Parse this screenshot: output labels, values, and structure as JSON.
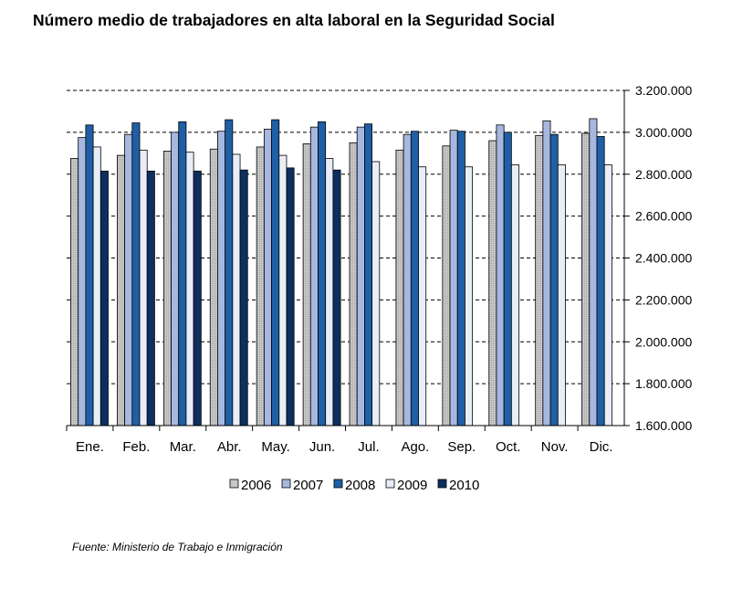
{
  "chart_data": {
    "type": "bar",
    "title": "Número medio de trabajadores en alta laboral en la Seguridad Social",
    "xlabel": "",
    "ylabel": "",
    "ylim": [
      1600000,
      3200000
    ],
    "yticks": [
      1600000,
      1800000,
      2000000,
      2200000,
      2400000,
      2600000,
      2800000,
      3000000,
      3200000
    ],
    "ytick_labels": [
      "1.600.000",
      "1.800.000",
      "2.000.000",
      "2.200.000",
      "2.400.000",
      "2.600.000",
      "2.800.000",
      "3.000.000",
      "3.200.000"
    ],
    "y_axis_side": "right",
    "grid": "dashed horizontal",
    "legend_position": "bottom",
    "categories": [
      "Ene.",
      "Feb.",
      "Mar.",
      "Abr.",
      "May.",
      "Jun.",
      "Jul.",
      "Ago.",
      "Sep.",
      "Oct.",
      "Nov.",
      "Dic."
    ],
    "series": [
      {
        "name": "2006",
        "color": "#c8c8c8",
        "values": [
          2875000,
          2890000,
          2910000,
          2920000,
          2930000,
          2945000,
          2950000,
          2915000,
          2935000,
          2960000,
          2985000,
          2995000
        ]
      },
      {
        "name": "2007",
        "color": "#a6b8df",
        "values": [
          2975000,
          2990000,
          3000000,
          3005000,
          3015000,
          3025000,
          3025000,
          2990000,
          3010000,
          3035000,
          3055000,
          3065000
        ]
      },
      {
        "name": "2008",
        "color": "#1f5fa6",
        "values": [
          3035000,
          3045000,
          3050000,
          3060000,
          3060000,
          3050000,
          3040000,
          3005000,
          3005000,
          3000000,
          2990000,
          2980000
        ]
      },
      {
        "name": "2009",
        "color": "#e8edf7",
        "values": [
          2930000,
          2915000,
          2905000,
          2895000,
          2890000,
          2875000,
          2860000,
          2835000,
          2835000,
          2845000,
          2845000,
          2845000
        ]
      },
      {
        "name": "2010",
        "color": "#0d2f5f",
        "values": [
          2815000,
          2815000,
          2815000,
          2820000,
          2830000,
          2820000,
          null,
          null,
          null,
          null,
          null,
          null
        ]
      }
    ],
    "source": "Fuente: Ministerio de Trabajo e Inmigración"
  }
}
